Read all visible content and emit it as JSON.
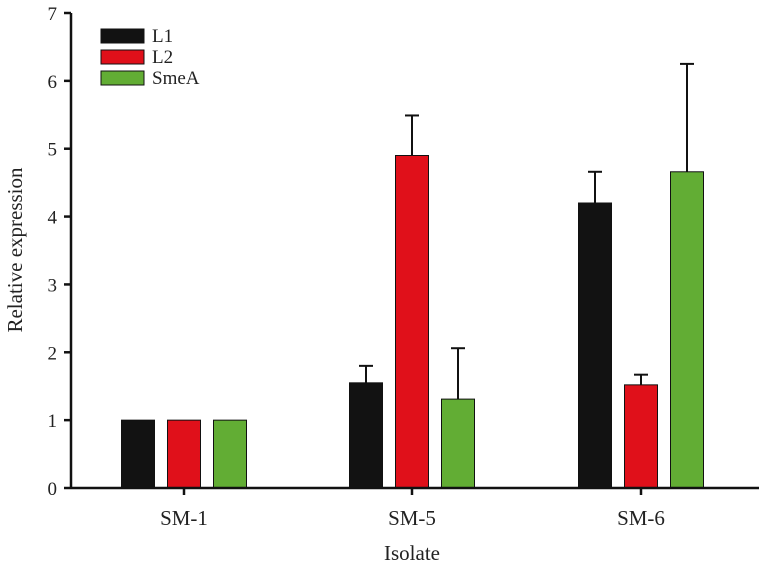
{
  "chart_data": {
    "type": "bar",
    "title": "",
    "xlabel": "Isolate",
    "ylabel": "Relative expression",
    "ylim": [
      0,
      7
    ],
    "yticks": [
      "0",
      "1",
      "2",
      "3",
      "4",
      "5",
      "6",
      "7"
    ],
    "categories": [
      "SM-1",
      "SM-5",
      "SM-6"
    ],
    "legend_position": "top-left",
    "grid": false,
    "series": [
      {
        "name": "L1",
        "color": "#121212",
        "values": [
          1.0,
          1.55,
          4.2
        ],
        "error": [
          0,
          0.25,
          0.46
        ]
      },
      {
        "name": "L2",
        "color": "#e0101a",
        "values": [
          1.0,
          4.9,
          1.52
        ],
        "error": [
          0,
          0.59,
          0.15
        ]
      },
      {
        "name": "SmeA",
        "color": "#62ad34",
        "values": [
          1.0,
          1.31,
          4.66
        ],
        "error": [
          0,
          0.75,
          1.59
        ]
      }
    ]
  }
}
